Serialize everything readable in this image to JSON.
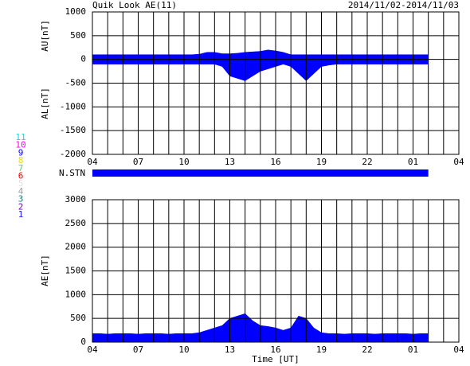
{
  "chart_data": [
    {
      "type": "band",
      "title": "Quik Look AE(11)",
      "subtitle": "2014/11/02-2014/11/03",
      "ylabel_upper": "AU[nT]",
      "ylabel_lower": "AL[nT]",
      "color": "#0000ff",
      "x": [
        0,
        0.5,
        1,
        1.5,
        2,
        2.5,
        3,
        3.5,
        4,
        4.5,
        5,
        5.5,
        6,
        6.5,
        7,
        7.5,
        8,
        8.5,
        9,
        9.5,
        10,
        10.5,
        11,
        11.5,
        12,
        12.5,
        13,
        13.5,
        14,
        14.5,
        15,
        15.5,
        16,
        16.5,
        17,
        17.5,
        18,
        18.5,
        19,
        19.5,
        20,
        20.5,
        21,
        21.5,
        22
      ],
      "series": [
        {
          "color": "#0000ff",
          "values": [
            100,
            100,
            100,
            100,
            100,
            100,
            100,
            100,
            100,
            100,
            100,
            100,
            100,
            100,
            110,
            150,
            150,
            120,
            120,
            130,
            150,
            160,
            170,
            200,
            180,
            150,
            100,
            100,
            100,
            100,
            100,
            100,
            100,
            100,
            100,
            100,
            100,
            100,
            100,
            100,
            100,
            100,
            100,
            100,
            100
          ]
        },
        {
          "color": "#0000ff",
          "values": [
            -100,
            -100,
            -100,
            -100,
            -100,
            -100,
            -100,
            -100,
            -100,
            -100,
            -100,
            -100,
            -100,
            -100,
            -100,
            -100,
            -100,
            -150,
            -350,
            -400,
            -450,
            -350,
            -250,
            -200,
            -150,
            -100,
            -150,
            -300,
            -450,
            -300,
            -150,
            -120,
            -100,
            -100,
            -100,
            -100,
            -100,
            -100,
            -100,
            -100,
            -100,
            -100,
            -100,
            -100,
            -100
          ]
        }
      ],
      "xlim": [
        0,
        24
      ],
      "xticks": [
        {
          "value": 0,
          "label": "04"
        },
        {
          "value": 3,
          "label": "07"
        },
        {
          "value": 6,
          "label": "10"
        },
        {
          "value": 9,
          "label": "13"
        },
        {
          "value": 12,
          "label": "16"
        },
        {
          "value": 15,
          "label": "19"
        },
        {
          "value": 18,
          "label": "22"
        },
        {
          "value": 21,
          "label": "01"
        },
        {
          "value": 24,
          "label": "04"
        }
      ],
      "xgrid": [
        0,
        1,
        2,
        3,
        4,
        5,
        6,
        7,
        8,
        9,
        10,
        11,
        12,
        13,
        14,
        15,
        16,
        17,
        18,
        19,
        20,
        21,
        22,
        23,
        24
      ],
      "ylim": [
        -2000,
        1000
      ],
      "yticks": [
        -2000,
        -1500,
        -1000,
        -500,
        0,
        500,
        1000
      ]
    },
    {
      "type": "area",
      "ylabel": "AE[nT]",
      "xlabel": "Time [UT]",
      "color": "#0000ff",
      "x": [
        0,
        0.5,
        1,
        1.5,
        2,
        2.5,
        3,
        3.5,
        4,
        4.5,
        5,
        5.5,
        6,
        6.5,
        7,
        7.5,
        8,
        8.5,
        9,
        9.5,
        10,
        10.5,
        11,
        11.5,
        12,
        12.5,
        13,
        13.5,
        14,
        14.5,
        15,
        15.5,
        16,
        16.5,
        17,
        17.5,
        18,
        18.5,
        19,
        19.5,
        20,
        20.5,
        21,
        21.5,
        22
      ],
      "values": [
        180,
        180,
        170,
        180,
        180,
        180,
        170,
        180,
        180,
        180,
        170,
        180,
        180,
        180,
        200,
        250,
        300,
        350,
        500,
        550,
        600,
        450,
        350,
        330,
        300,
        250,
        300,
        550,
        500,
        300,
        200,
        180,
        180,
        170,
        180,
        180,
        180,
        170,
        180,
        180,
        180,
        180,
        170,
        180,
        180
      ],
      "xlim": [
        0,
        24
      ],
      "xticks": [
        {
          "value": 0,
          "label": "04"
        },
        {
          "value": 3,
          "label": "07"
        },
        {
          "value": 6,
          "label": "10"
        },
        {
          "value": 9,
          "label": "13"
        },
        {
          "value": 12,
          "label": "16"
        },
        {
          "value": 15,
          "label": "19"
        },
        {
          "value": 18,
          "label": "22"
        },
        {
          "value": 21,
          "label": "01"
        },
        {
          "value": 24,
          "label": "04"
        }
      ],
      "xgrid": [
        0,
        1,
        2,
        3,
        4,
        5,
        6,
        7,
        8,
        9,
        10,
        11,
        12,
        13,
        14,
        15,
        16,
        17,
        18,
        19,
        20,
        21,
        22,
        23,
        24
      ],
      "ylim": [
        0,
        3000
      ],
      "yticks": [
        0,
        500,
        1000,
        1500,
        2000,
        2500,
        3000
      ]
    }
  ],
  "stations": {
    "label": "N.STN",
    "coverage": [
      0,
      22
    ],
    "color": "#0000ff"
  },
  "station_legend": [
    {
      "label": "11",
      "color": "#00e0e0"
    },
    {
      "label": "10",
      "color": "#ff00ff"
    },
    {
      "label": "9",
      "color": "#0000ff"
    },
    {
      "label": "8",
      "color": "#e8e000"
    },
    {
      "label": "7",
      "color": "#60d060"
    },
    {
      "label": "6",
      "color": "#ff0000"
    },
    {
      "label": "5",
      "color": "#e0e0e0"
    },
    {
      "label": "4",
      "color": "#a0a0a0"
    },
    {
      "label": "3",
      "color": "#008080"
    },
    {
      "label": "2",
      "color": "#8000c0"
    },
    {
      "label": "1",
      "color": "#2020ff"
    }
  ]
}
